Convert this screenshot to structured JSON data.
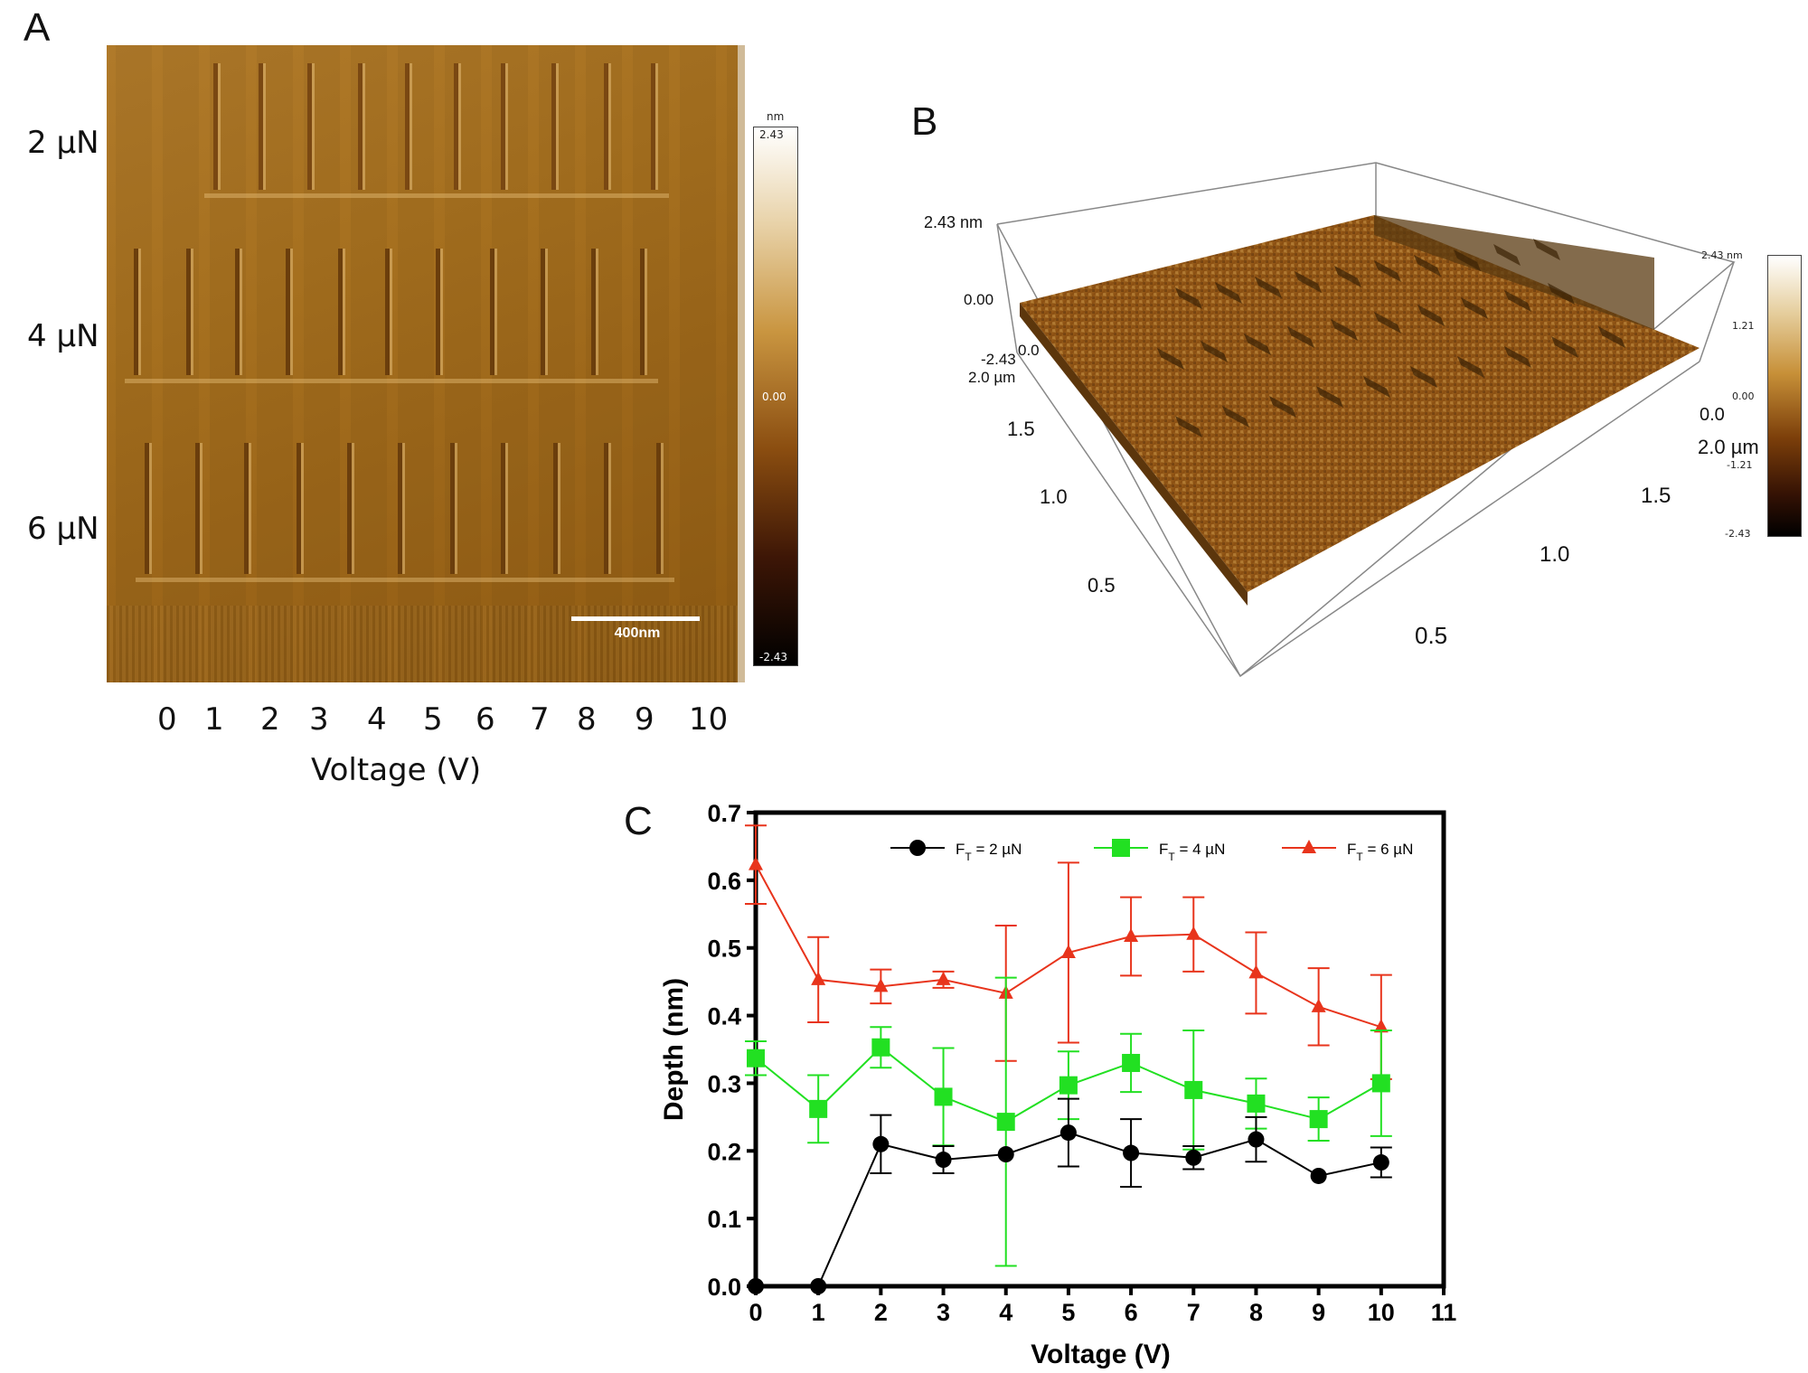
{
  "panelA": {
    "letter": "A",
    "row_labels": [
      "2 µN",
      "4 µN",
      "6 µN"
    ],
    "x_ticks": [
      "0",
      "1",
      "2",
      "3",
      "4",
      "5",
      "6",
      "7",
      "8",
      "9",
      "10"
    ],
    "x_label": "Voltage (V)",
    "scale_bar": "400nm",
    "colorbar": {
      "unit": "nm",
      "max": "2.43",
      "mid": "0.00",
      "min": "-2.43"
    }
  },
  "panelB": {
    "letter": "B",
    "z_labels": {
      "top": "2.43 nm",
      "mid": "0.00",
      "low": "-2.43"
    },
    "y_axis_labels": [
      "2.0 µm",
      "1.5",
      "1.0",
      "0.5"
    ],
    "y_zero": "0.0",
    "x_axis_labels": [
      "0.5",
      "1.0",
      "1.5",
      "2.0 µm"
    ],
    "x_zero": "0.0",
    "colorbar": {
      "top": "2.43 nm",
      "t2": "1.21",
      "t3": "0.00",
      "t4": "-1.21",
      "bottom": "-2.43"
    }
  },
  "chart_data": {
    "type": "line",
    "panel_letter": "C",
    "xlabel": "Voltage (V)",
    "ylabel": "Depth (nm)",
    "xlim": [
      0,
      11
    ],
    "ylim": [
      0,
      0.7
    ],
    "x_ticks": [
      0,
      1,
      2,
      3,
      4,
      5,
      6,
      7,
      8,
      9,
      10,
      11
    ],
    "y_ticks": [
      "0.0",
      "0.1",
      "0.2",
      "0.3",
      "0.4",
      "0.5",
      "0.6",
      "0.7"
    ],
    "legend_position": "top",
    "x": [
      0,
      1,
      2,
      3,
      4,
      5,
      6,
      7,
      8,
      9,
      10
    ],
    "series": [
      {
        "name": "F",
        "sub": "T",
        "suffix": " = 2 µN",
        "color": "#000000",
        "marker": "circle",
        "values": [
          0.0,
          0.0,
          0.21,
          0.187,
          0.195,
          0.227,
          0.197,
          0.19,
          0.217,
          0.163,
          0.183
        ],
        "errors": [
          0,
          0,
          0.043,
          0.02,
          0,
          0.05,
          0.05,
          0.017,
          0.033,
          0,
          0.022
        ]
      },
      {
        "name": "F",
        "sub": "T",
        "suffix": " = 4 µN",
        "color": "#22e022",
        "marker": "square",
        "values": [
          0.337,
          0.262,
          0.353,
          0.28,
          0.243,
          0.297,
          0.33,
          0.29,
          0.27,
          0.247,
          0.3
        ],
        "errors": [
          0.025,
          0.05,
          0.03,
          0.072,
          0.213,
          0.05,
          0.043,
          0.088,
          0.037,
          0.032,
          0.078
        ]
      },
      {
        "name": "F",
        "sub": "T",
        "suffix": " = 6 µN",
        "color": "#e8341c",
        "marker": "triangle",
        "values": [
          0.623,
          0.453,
          0.443,
          0.453,
          0.433,
          0.493,
          0.517,
          0.52,
          0.463,
          0.413,
          0.383
        ],
        "errors": [
          0.058,
          0.063,
          0.025,
          0.012,
          0.1,
          0.133,
          0.058,
          0.055,
          0.06,
          0.057,
          0.077
        ]
      }
    ]
  }
}
